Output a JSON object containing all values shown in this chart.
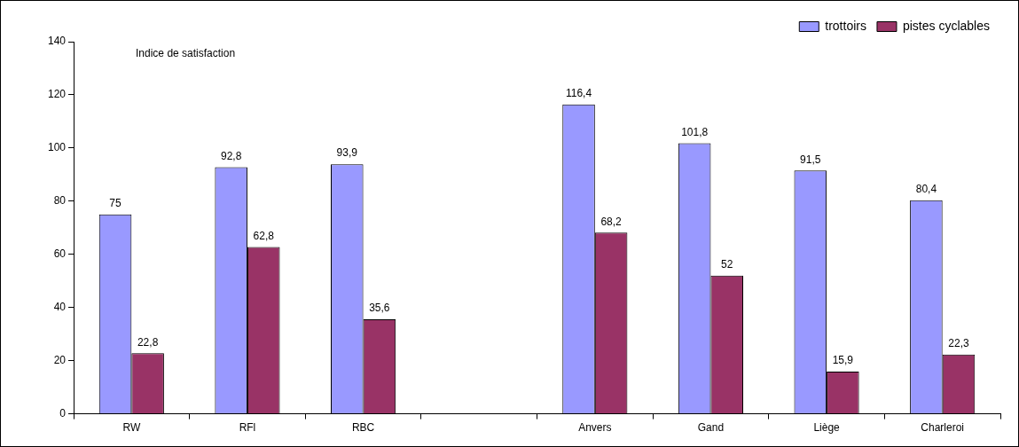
{
  "chart_data": {
    "type": "bar",
    "categories": [
      "RW",
      "RFl",
      "RBC",
      null,
      "Anvers",
      "Gand",
      "Liège",
      "Charleroi"
    ],
    "series": [
      {
        "name": "trottoirs",
        "color": "#9999ff",
        "values": [
          75,
          92.8,
          93.9,
          null,
          116.4,
          101.8,
          91.5,
          80.4
        ],
        "value_labels": [
          "75",
          "92,8",
          "93,9",
          null,
          "116,4",
          "101,8",
          "91,5",
          "80,4"
        ]
      },
      {
        "name": "pistes cyclables",
        "color": "#993366",
        "values": [
          22.8,
          62.8,
          35.6,
          null,
          68.2,
          52,
          15.9,
          22.3
        ],
        "value_labels": [
          "22,8",
          "62,8",
          "35,6",
          null,
          "68,2",
          "52",
          "15,9",
          "22,3"
        ]
      }
    ],
    "ylim": [
      0,
      140
    ],
    "yticks": [
      0,
      20,
      40,
      60,
      80,
      100,
      120,
      140
    ],
    "grid": false,
    "legend": "top right",
    "annotations": [
      "Indice de satisfaction"
    ]
  }
}
